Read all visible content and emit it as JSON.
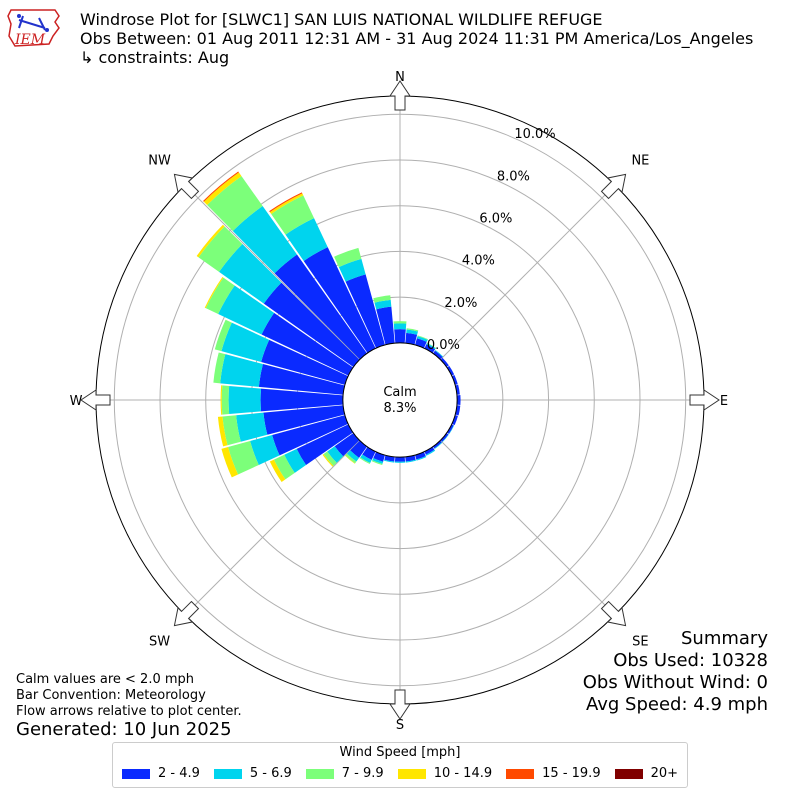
{
  "logo_text": "IEM",
  "title": {
    "line1": "Windrose Plot for [SLWC1] SAN LUIS NATIONAL WILDLIFE REFUGE",
    "line2": "Obs Between: 01 Aug 2011 12:31 AM - 31 Aug 2024 11:31 PM America/Los_Angeles",
    "line3": "↳ constraints: Aug"
  },
  "summary": {
    "heading": "Summary",
    "obs_used": "Obs Used: 10328",
    "obs_without_wind": "Obs Without Wind: 0",
    "avg_speed": "Avg Speed: 4.9 mph"
  },
  "notes": {
    "calm": "Calm values are < 2.0 mph",
    "convention": "Bar Convention: Meteorology",
    "arrows": "Flow arrows relative to plot center."
  },
  "generated": "Generated: 10 Jun 2025",
  "chart_data": {
    "type": "windrose",
    "calm_label": "Calm",
    "calm_value": "8.3%",
    "compass_labels": [
      "N",
      "NE",
      "E",
      "SE",
      "S",
      "SW",
      "W",
      "NW"
    ],
    "radial_ticks": [
      "0.0%",
      "2.0%",
      "4.0%",
      "6.0%",
      "8.0%",
      "10.0%"
    ],
    "radial_range": [
      -2.5,
      10.8
    ],
    "legend_title": "Wind Speed [mph]",
    "bins": [
      {
        "label": "2 - 4.9",
        "color": "#0a2aff"
      },
      {
        "label": "5 - 6.9",
        "color": "#00d4ee"
      },
      {
        "label": "7 - 9.9",
        "color": "#7cff7a"
      },
      {
        "label": "10 - 14.9",
        "color": "#ffe600"
      },
      {
        "label": "15 - 19.9",
        "color": "#ff4a00"
      },
      {
        "label": "20+",
        "color": "#800000"
      }
    ],
    "sectors": [
      {
        "dir": 0,
        "values": [
          0.6,
          0.25,
          0.1,
          0,
          0,
          0
        ]
      },
      {
        "dir": 10,
        "values": [
          0.45,
          0.15,
          0.05,
          0,
          0,
          0
        ]
      },
      {
        "dir": 20,
        "values": [
          0.3,
          0.1,
          0.03,
          0,
          0,
          0
        ]
      },
      {
        "dir": 30,
        "values": [
          0.2,
          0.05,
          0.02,
          0,
          0,
          0
        ]
      },
      {
        "dir": 40,
        "values": [
          0.15,
          0.03,
          0,
          0,
          0,
          0
        ]
      },
      {
        "dir": 50,
        "values": [
          0.12,
          0,
          0,
          0,
          0,
          0
        ]
      },
      {
        "dir": 60,
        "values": [
          0.12,
          0,
          0,
          0,
          0,
          0
        ]
      },
      {
        "dir": 70,
        "values": [
          0.12,
          0,
          0,
          0,
          0,
          0
        ]
      },
      {
        "dir": 80,
        "values": [
          0.13,
          0,
          0,
          0,
          0,
          0
        ]
      },
      {
        "dir": 90,
        "values": [
          0.15,
          0,
          0,
          0,
          0,
          0
        ]
      },
      {
        "dir": 100,
        "values": [
          0.15,
          0,
          0,
          0,
          0,
          0
        ]
      },
      {
        "dir": 110,
        "values": [
          0.13,
          0,
          0,
          0,
          0,
          0
        ]
      },
      {
        "dir": 120,
        "values": [
          0.1,
          0.02,
          0,
          0,
          0,
          0
        ]
      },
      {
        "dir": 130,
        "values": [
          0.1,
          0.02,
          0,
          0,
          0,
          0
        ]
      },
      {
        "dir": 140,
        "values": [
          0.1,
          0.03,
          0,
          0,
          0,
          0
        ]
      },
      {
        "dir": 150,
        "values": [
          0.15,
          0.05,
          0,
          0,
          0,
          0
        ]
      },
      {
        "dir": 160,
        "values": [
          0.2,
          0.05,
          0,
          0,
          0,
          0
        ]
      },
      {
        "dir": 170,
        "values": [
          0.2,
          0.05,
          0,
          0,
          0,
          0
        ]
      },
      {
        "dir": 180,
        "values": [
          0.2,
          0.05,
          0,
          0,
          0,
          0
        ]
      },
      {
        "dir": 190,
        "values": [
          0.2,
          0.05,
          0,
          0,
          0,
          0
        ]
      },
      {
        "dir": 200,
        "values": [
          0.3,
          0.1,
          0.05,
          0,
          0,
          0
        ]
      },
      {
        "dir": 210,
        "values": [
          0.4,
          0.15,
          0.05,
          0,
          0,
          0
        ]
      },
      {
        "dir": 220,
        "values": [
          0.6,
          0.2,
          0.1,
          0.02,
          0,
          0
        ]
      },
      {
        "dir": 230,
        "values": [
          1.0,
          0.4,
          0.2,
          0.05,
          0,
          0
        ]
      },
      {
        "dir": 240,
        "values": [
          2.5,
          0.6,
          0.5,
          0.2,
          0,
          0
        ]
      },
      {
        "dir": 250,
        "values": [
          3.3,
          1.0,
          1.0,
          0.3,
          0,
          0
        ]
      },
      {
        "dir": 260,
        "values": [
          3.5,
          1.2,
          0.6,
          0.2,
          0,
          0
        ]
      },
      {
        "dir": 270,
        "values": [
          3.6,
          1.4,
          0.3,
          0.05,
          0,
          0
        ]
      },
      {
        "dir": 280,
        "values": [
          3.7,
          1.7,
          0.3,
          0,
          0,
          0
        ]
      },
      {
        "dir": 290,
        "values": [
          3.8,
          1.8,
          0.3,
          0,
          0,
          0
        ]
      },
      {
        "dir": 300,
        "values": [
          4.2,
          2.1,
          0.6,
          0.05,
          0,
          0
        ]
      },
      {
        "dir": 310,
        "values": [
          4.8,
          2.4,
          1.1,
          0.1,
          0,
          0
        ]
      },
      {
        "dir": 320,
        "values": [
          5.3,
          2.6,
          1.6,
          0.2,
          0.05,
          0
        ]
      },
      {
        "dir": 330,
        "values": [
          4.9,
          1.4,
          1.1,
          0.1,
          0.05,
          0
        ]
      },
      {
        "dir": 340,
        "values": [
          3.2,
          0.7,
          0.5,
          0,
          0,
          0
        ]
      },
      {
        "dir": 350,
        "values": [
          1.6,
          0.3,
          0.2,
          0,
          0,
          0
        ]
      }
    ]
  }
}
